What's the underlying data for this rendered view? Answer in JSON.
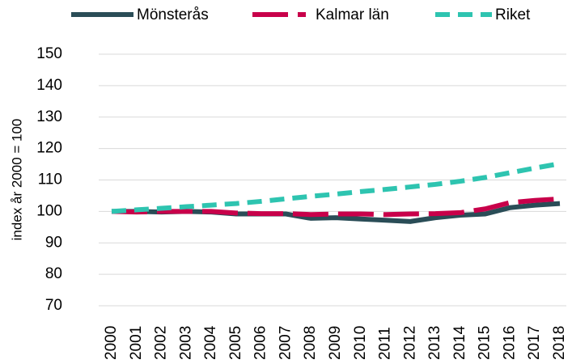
{
  "chart_data": {
    "type": "line",
    "y_label": "index år 2000 = 100",
    "categories": [
      "2000",
      "2001",
      "2002",
      "2003",
      "2004",
      "2005",
      "2006",
      "2007",
      "2008",
      "2009",
      "2010",
      "2011",
      "2012",
      "2013",
      "2014",
      "2015",
      "2016",
      "2017",
      "2018"
    ],
    "series": [
      {
        "name": "Mönsterås",
        "color": "#2a4d57",
        "line_style": "solid",
        "values": [
          100,
          100,
          99.8,
          100,
          99.8,
          99.2,
          99.2,
          99.2,
          97.8,
          98,
          97.6,
          97.2,
          96.8,
          98,
          98.8,
          99.2,
          101.2,
          102,
          102.5
        ]
      },
      {
        "name": "Kalmar län",
        "color": "#c8004a",
        "line_style": "long-dash",
        "values": [
          100,
          99.8,
          100,
          100,
          100,
          99.5,
          99.3,
          99.3,
          99,
          99.2,
          99.2,
          99,
          99.2,
          99.3,
          99.6,
          100.8,
          102.8,
          103.5,
          104
        ]
      },
      {
        "name": "Riket",
        "color": "#2ec4b0",
        "line_style": "dash",
        "values": [
          100,
          100.5,
          101,
          101.5,
          102,
          102.5,
          103.2,
          104,
          104.8,
          105.5,
          106.3,
          107,
          107.8,
          108.6,
          109.6,
          110.8,
          112.3,
          113.8,
          115.2
        ]
      }
    ],
    "ylim": [
      70,
      150
    ],
    "yticks": [
      70,
      80,
      90,
      100,
      110,
      120,
      130,
      140,
      150
    ],
    "grid": true,
    "legend": "top"
  }
}
